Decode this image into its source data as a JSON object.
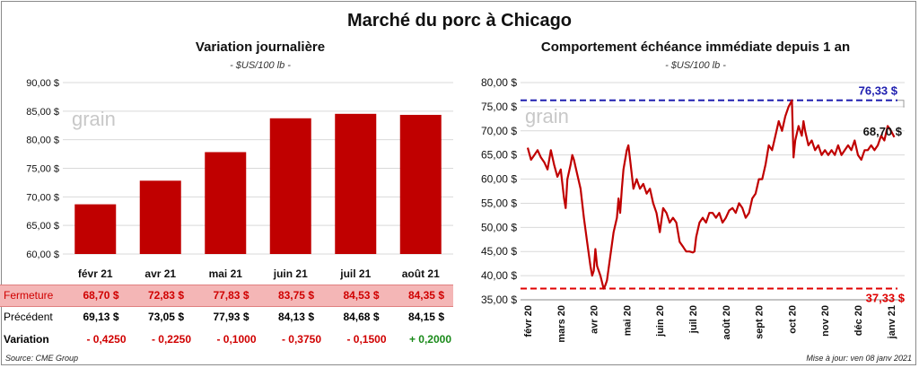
{
  "main_title": "Marché du porc à Chicago",
  "colors": {
    "bar": "#c00000",
    "line": "#c00000",
    "high": "#2020b0",
    "low": "#e00000",
    "row_highlight": "#f4b6b6",
    "positive": "#1a8a1a",
    "negative": "#d00000"
  },
  "watermark": "grain",
  "left": {
    "title": "Variation  journalière",
    "unit": "- $US/100 lb -",
    "chart_data": {
      "type": "bar",
      "title": "Variation  journalière",
      "categories": [
        "févr 21",
        "avr 21",
        "mai 21",
        "juin 21",
        "juil 21",
        "août 21"
      ],
      "values": [
        68.7,
        72.83,
        77.83,
        83.75,
        84.53,
        84.35
      ],
      "ylim": [
        60,
        90
      ],
      "yticks": [
        60,
        65,
        70,
        75,
        80,
        85,
        90
      ],
      "ytick_labels": [
        "60,00 $",
        "65,00 $",
        "70,00 $",
        "75,00 $",
        "80,00 $",
        "85,00 $",
        "90,00 $"
      ],
      "grid": true
    },
    "table": {
      "rows": [
        {
          "label": "Fermeture",
          "highlight": true,
          "values": [
            "68,70 $",
            "72,83 $",
            "77,83 $",
            "83,75 $",
            "84,53 $",
            "84,35 $"
          ]
        },
        {
          "label": "Précédent",
          "highlight": false,
          "values": [
            "69,13 $",
            "73,05 $",
            "77,93 $",
            "84,13 $",
            "84,68 $",
            "84,15 $"
          ]
        },
        {
          "label": "Variation",
          "highlight": false,
          "values": [
            "- 0,4250",
            "- 0,2250",
            "- 0,1000",
            "- 0,3750",
            "- 0,1500",
            "+ 0,2000"
          ],
          "signs": [
            "neg",
            "neg",
            "neg",
            "neg",
            "neg",
            "pos"
          ]
        }
      ]
    }
  },
  "right": {
    "title": "Comportement  échéance immédiate depuis 1 an",
    "unit": "- $US/100 lb -",
    "chart_data": {
      "type": "line",
      "title": "Comportement  échéance immédiate depuis 1 an",
      "x_month_labels": [
        "févr 20",
        "mars 20",
        "avr 20",
        "mai 20",
        "juin 20",
        "juil 20",
        "août 20",
        "sept 20",
        "oct 20",
        "nov 20",
        "déc 20",
        "janv 21"
      ],
      "ylim": [
        35,
        80
      ],
      "yticks": [
        35,
        40,
        45,
        50,
        55,
        60,
        65,
        70,
        75,
        80
      ],
      "ytick_labels": [
        "35,00 $",
        "40,00 $",
        "45,00 $",
        "50,00 $",
        "55,00 $",
        "60,00 $",
        "65,00 $",
        "70,00 $",
        "75,00 $",
        "80,00 $"
      ],
      "grid": true,
      "high": 76.33,
      "high_label": "76,33 $",
      "low": 37.33,
      "low_label": "37,33 $",
      "last": 68.7,
      "last_label": "68,70 $",
      "series": [
        {
          "points": [
            [
              0,
              66.5
            ],
            [
              0.1,
              64
            ],
            [
              0.2,
              65
            ],
            [
              0.3,
              66
            ],
            [
              0.4,
              64.5
            ],
            [
              0.5,
              63.5
            ],
            [
              0.6,
              62
            ],
            [
              0.7,
              66
            ],
            [
              0.8,
              63
            ],
            [
              0.9,
              60.5
            ],
            [
              1.0,
              62
            ],
            [
              1.1,
              56
            ],
            [
              1.15,
              54
            ],
            [
              1.2,
              60
            ],
            [
              1.3,
              63
            ],
            [
              1.35,
              65
            ],
            [
              1.4,
              64
            ],
            [
              1.5,
              61
            ],
            [
              1.6,
              58
            ],
            [
              1.7,
              52
            ],
            [
              1.8,
              47
            ],
            [
              1.9,
              42
            ],
            [
              1.95,
              40
            ],
            [
              2.0,
              41
            ],
            [
              2.05,
              45.5
            ],
            [
              2.1,
              42
            ],
            [
              2.2,
              40
            ],
            [
              2.3,
              37.3
            ],
            [
              2.35,
              38
            ],
            [
              2.4,
              39
            ],
            [
              2.5,
              44
            ],
            [
              2.6,
              49
            ],
            [
              2.7,
              52
            ],
            [
              2.75,
              56
            ],
            [
              2.8,
              53
            ],
            [
              2.85,
              58
            ],
            [
              2.9,
              62
            ],
            [
              3.0,
              66
            ],
            [
              3.05,
              67
            ],
            [
              3.1,
              64
            ],
            [
              3.2,
              58
            ],
            [
              3.3,
              60
            ],
            [
              3.4,
              58
            ],
            [
              3.5,
              59
            ],
            [
              3.6,
              57
            ],
            [
              3.7,
              58
            ],
            [
              3.8,
              55
            ],
            [
              3.9,
              53
            ],
            [
              4.0,
              49
            ],
            [
              4.1,
              54
            ],
            [
              4.2,
              53
            ],
            [
              4.3,
              51
            ],
            [
              4.4,
              52
            ],
            [
              4.5,
              51
            ],
            [
              4.6,
              47
            ],
            [
              4.7,
              46
            ],
            [
              4.8,
              45
            ],
            [
              4.9,
              45
            ],
            [
              5.0,
              44.8
            ],
            [
              5.05,
              45
            ],
            [
              5.1,
              48
            ],
            [
              5.2,
              51
            ],
            [
              5.3,
              52
            ],
            [
              5.4,
              51
            ],
            [
              5.5,
              53
            ],
            [
              5.6,
              53
            ],
            [
              5.7,
              52
            ],
            [
              5.8,
              53
            ],
            [
              5.9,
              51
            ],
            [
              6.0,
              52
            ],
            [
              6.1,
              53.5
            ],
            [
              6.2,
              54
            ],
            [
              6.3,
              53
            ],
            [
              6.4,
              55
            ],
            [
              6.5,
              54
            ],
            [
              6.6,
              52
            ],
            [
              6.7,
              53
            ],
            [
              6.8,
              56
            ],
            [
              6.9,
              57
            ],
            [
              7.0,
              60
            ],
            [
              7.1,
              60
            ],
            [
              7.2,
              63
            ],
            [
              7.3,
              67
            ],
            [
              7.4,
              66
            ],
            [
              7.5,
              69
            ],
            [
              7.6,
              72
            ],
            [
              7.7,
              70
            ],
            [
              7.8,
              73
            ],
            [
              7.9,
              75
            ],
            [
              8.0,
              76.3
            ],
            [
              8.05,
              64.5
            ],
            [
              8.1,
              68
            ],
            [
              8.2,
              71
            ],
            [
              8.3,
              69
            ],
            [
              8.35,
              72
            ],
            [
              8.4,
              70
            ],
            [
              8.5,
              67
            ],
            [
              8.6,
              68
            ],
            [
              8.7,
              66
            ],
            [
              8.8,
              67
            ],
            [
              8.9,
              65
            ],
            [
              9.0,
              66
            ],
            [
              9.1,
              65
            ],
            [
              9.2,
              66
            ],
            [
              9.3,
              65
            ],
            [
              9.4,
              67
            ],
            [
              9.5,
              65
            ],
            [
              9.6,
              66
            ],
            [
              9.7,
              67
            ],
            [
              9.8,
              66
            ],
            [
              9.9,
              68
            ],
            [
              10.0,
              65
            ],
            [
              10.1,
              64
            ],
            [
              10.2,
              66
            ],
            [
              10.3,
              66
            ],
            [
              10.4,
              67
            ],
            [
              10.5,
              66
            ],
            [
              10.6,
              67
            ],
            [
              10.7,
              69
            ],
            [
              10.8,
              68
            ],
            [
              10.9,
              71
            ],
            [
              11.0,
              70
            ],
            [
              11.1,
              68.7
            ]
          ]
        }
      ]
    }
  },
  "footer": {
    "source": "Source: CME Group",
    "updated": "Mise à jour: ven 08 janv 2021"
  }
}
